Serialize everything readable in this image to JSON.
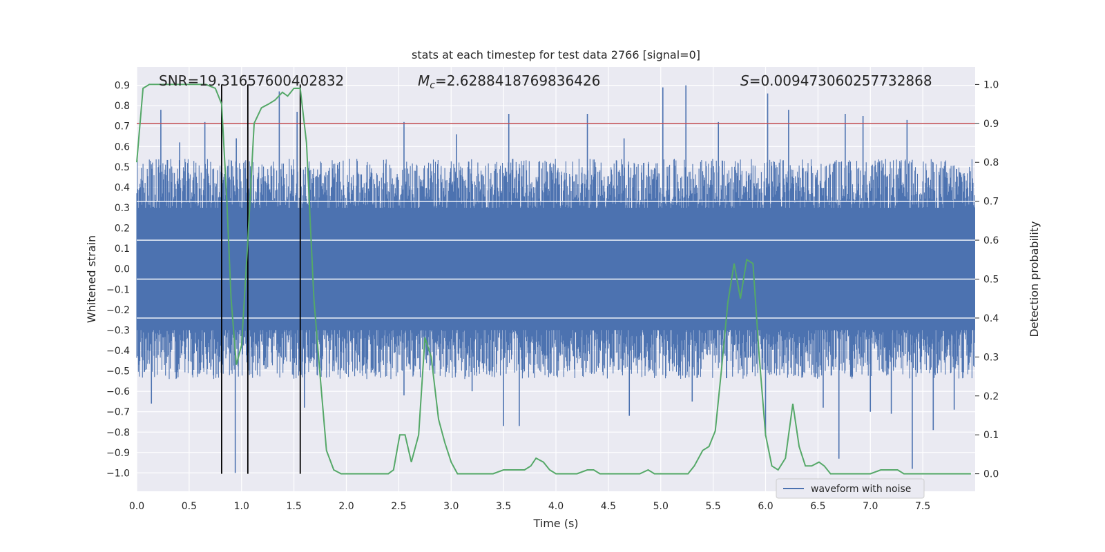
{
  "chart_data": {
    "type": "line",
    "title": "stats at each timestep for test data 2766 [signal=0]",
    "xlabel": "Time (s)",
    "ylabel": "Whitened strain",
    "y2label": "Detection probability",
    "xlim": [
      0.0,
      8.0
    ],
    "ylim": [
      -1.09,
      0.99
    ],
    "y2lim": [
      -0.045,
      1.045
    ],
    "xticks": [
      "0.0",
      "0.5",
      "1.0",
      "1.5",
      "2.0",
      "2.5",
      "3.0",
      "3.5",
      "4.0",
      "4.5",
      "5.0",
      "5.5",
      "6.0",
      "6.5",
      "7.0",
      "7.5"
    ],
    "yticks": [
      "0.9",
      "0.8",
      "0.7",
      "0.6",
      "0.5",
      "0.4",
      "0.3",
      "0.2",
      "0.1",
      "0.0",
      "−0.1",
      "−0.2",
      "−0.3",
      "−0.4",
      "−0.5",
      "−0.6",
      "−0.7",
      "−0.8",
      "−0.9",
      "−1.0"
    ],
    "y2ticks": [
      "1.0",
      "0.9",
      "0.8",
      "0.7",
      "0.6",
      "0.5",
      "0.4",
      "0.3",
      "0.2",
      "0.1",
      "0.0"
    ],
    "annotations": {
      "snr": "SNR=19.31657600402832",
      "mc_symbol": "M",
      "mc_sub": "c",
      "mc_value": "=2.6288418769836426",
      "s_symbol": "S",
      "s_value": "=0.009473060257732868"
    },
    "threshold": {
      "y2": 0.9,
      "color": "#c44e52"
    },
    "vertical_lines": [
      0.81,
      1.06,
      1.56
    ],
    "waveform": {
      "name": "waveform with noise",
      "color": "#4c72b0",
      "band": [
        -0.42,
        0.42
      ],
      "spikes_up": [
        [
          0.23,
          0.78
        ],
        [
          0.41,
          0.62
        ],
        [
          0.65,
          0.72
        ],
        [
          0.95,
          0.64
        ],
        [
          1.36,
          0.87
        ],
        [
          1.53,
          0.77
        ],
        [
          2.55,
          0.72
        ],
        [
          3.05,
          0.66
        ],
        [
          3.55,
          0.76
        ],
        [
          4.3,
          0.76
        ],
        [
          4.65,
          0.64
        ],
        [
          5.02,
          0.89
        ],
        [
          5.24,
          0.9
        ],
        [
          5.55,
          0.72
        ],
        [
          6.02,
          0.86
        ],
        [
          6.22,
          0.78
        ],
        [
          6.76,
          0.76
        ],
        [
          6.93,
          0.75
        ],
        [
          7.35,
          0.73
        ]
      ],
      "spikes_down": [
        [
          0.14,
          -0.66
        ],
        [
          0.94,
          -1.0
        ],
        [
          1.6,
          -0.68
        ],
        [
          2.55,
          -0.62
        ],
        [
          3.2,
          -0.6
        ],
        [
          3.5,
          -0.77
        ],
        [
          3.65,
          -0.77
        ],
        [
          4.7,
          -0.72
        ],
        [
          5.3,
          -0.65
        ],
        [
          6.0,
          -0.82
        ],
        [
          6.55,
          -0.68
        ],
        [
          6.7,
          -0.93
        ],
        [
          7.0,
          -0.7
        ],
        [
          7.2,
          -0.71
        ],
        [
          7.4,
          -0.98
        ],
        [
          7.6,
          -0.79
        ],
        [
          7.8,
          -0.69
        ]
      ]
    },
    "probability": {
      "color": "#55a868",
      "x": [
        0.0,
        0.06,
        0.12,
        0.2,
        0.3,
        0.4,
        0.5,
        0.6,
        0.66,
        0.75,
        0.81,
        0.86,
        0.9,
        0.95,
        1.0,
        1.06,
        1.12,
        1.19,
        1.26,
        1.32,
        1.39,
        1.44,
        1.5,
        1.56,
        1.62,
        1.69,
        1.75,
        1.81,
        1.88,
        1.95,
        2.0,
        2.1,
        2.2,
        2.3,
        2.4,
        2.45,
        2.51,
        2.56,
        2.62,
        2.69,
        2.75,
        2.81,
        2.88,
        2.94,
        3.0,
        3.06,
        3.12,
        3.2,
        3.3,
        3.4,
        3.5,
        3.6,
        3.7,
        3.76,
        3.81,
        3.88,
        3.94,
        4.0,
        4.1,
        4.2,
        4.3,
        4.36,
        4.42,
        4.5,
        4.6,
        4.7,
        4.8,
        4.88,
        4.94,
        5.0,
        5.1,
        5.2,
        5.26,
        5.32,
        5.4,
        5.46,
        5.52,
        5.58,
        5.64,
        5.7,
        5.76,
        5.82,
        5.88,
        5.94,
        6.0,
        6.06,
        6.12,
        6.19,
        6.26,
        6.32,
        6.38,
        6.44,
        6.51,
        6.56,
        6.62,
        6.7,
        6.8,
        6.9,
        7.0,
        7.1,
        7.2,
        7.26,
        7.32,
        7.4,
        7.5,
        7.6,
        7.7,
        7.8,
        7.96
      ],
      "y": [
        0.8,
        0.99,
        1.0,
        1.0,
        1.0,
        1.0,
        1.0,
        1.0,
        1.0,
        0.99,
        0.95,
        0.7,
        0.45,
        0.28,
        0.33,
        0.6,
        0.9,
        0.94,
        0.95,
        0.96,
        0.98,
        0.97,
        0.99,
        0.99,
        0.85,
        0.45,
        0.25,
        0.06,
        0.01,
        0.0,
        0.0,
        0.0,
        0.0,
        0.0,
        0.0,
        0.01,
        0.1,
        0.1,
        0.03,
        0.1,
        0.35,
        0.3,
        0.14,
        0.08,
        0.03,
        0.0,
        0.0,
        0.0,
        0.0,
        0.0,
        0.01,
        0.01,
        0.01,
        0.02,
        0.04,
        0.03,
        0.01,
        0.0,
        0.0,
        0.0,
        0.01,
        0.01,
        0.0,
        0.0,
        0.0,
        0.0,
        0.0,
        0.01,
        0.0,
        0.0,
        0.0,
        0.0,
        0.0,
        0.02,
        0.06,
        0.07,
        0.11,
        0.27,
        0.44,
        0.54,
        0.45,
        0.55,
        0.54,
        0.3,
        0.1,
        0.02,
        0.01,
        0.04,
        0.18,
        0.07,
        0.02,
        0.02,
        0.03,
        0.02,
        0.0,
        0.0,
        0.0,
        0.0,
        0.0,
        0.01,
        0.01,
        0.01,
        0.0,
        0.0,
        0.0,
        0.0,
        0.0,
        0.0,
        0.0
      ]
    },
    "legend": {
      "label": "waveform with noise",
      "placement": "lower-right"
    }
  }
}
